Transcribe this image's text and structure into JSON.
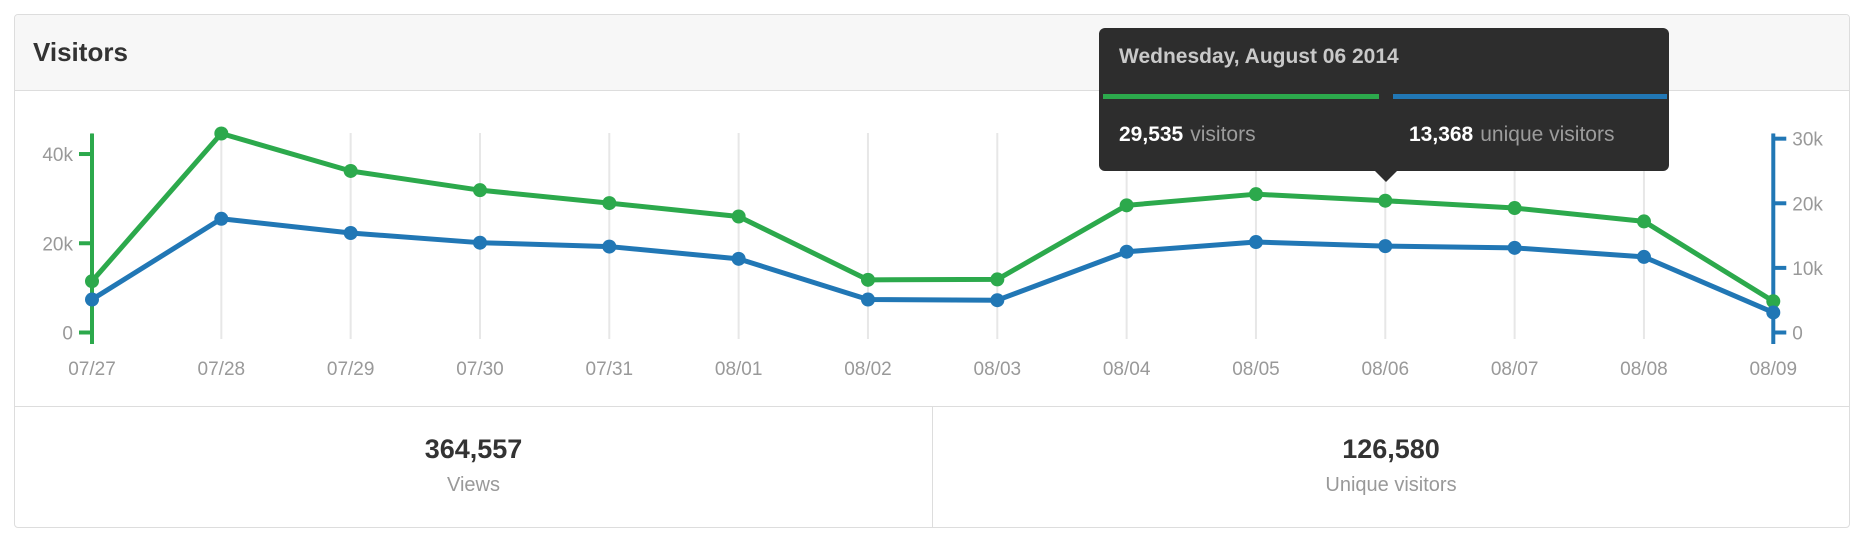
{
  "panel": {
    "title": "Visitors"
  },
  "tooltip": {
    "date": "Wednesday, August 06 2014",
    "visitors_value": "29,535",
    "visitors_label": "visitors",
    "unique_value": "13,368",
    "unique_label": "unique visitors"
  },
  "summary": {
    "views": {
      "value": "364,557",
      "label": "Views"
    },
    "unique": {
      "value": "126,580",
      "label": "Unique visitors"
    }
  },
  "colors": {
    "visitors_green": "#2ca94c",
    "unique_blue": "#2177b5",
    "gridline": "#e7e7e7",
    "axis_label": "#999999",
    "tooltip_bg": "#2d2d2d"
  },
  "chart_data": {
    "type": "line",
    "title": "Visitors",
    "x": [
      "07/27",
      "07/28",
      "07/29",
      "07/30",
      "07/31",
      "08/01",
      "08/02",
      "08/03",
      "08/04",
      "08/05",
      "08/06",
      "08/07",
      "08/08",
      "08/09"
    ],
    "series": [
      {
        "name": "visitors",
        "axis": "left",
        "color": "#2ca94c",
        "values": [
          11500,
          44600,
          36200,
          31900,
          29000,
          26000,
          11800,
          11900,
          28500,
          31000,
          29535,
          27900,
          24900,
          7000
        ]
      },
      {
        "name": "unique visitors",
        "axis": "right",
        "color": "#2177b5",
        "values": [
          5100,
          17600,
          15400,
          13900,
          13300,
          11400,
          5100,
          5000,
          12500,
          14000,
          13368,
          13100,
          11700,
          3100
        ]
      }
    ],
    "left_axis": {
      "ticks": [
        0,
        20000,
        40000
      ],
      "labels": [
        "0",
        "20k",
        "40k"
      ],
      "max": 44600
    },
    "right_axis": {
      "ticks": [
        0,
        10000,
        20000,
        30000
      ],
      "labels": [
        "0",
        "10k",
        "20k",
        "30k"
      ],
      "max": 30800
    },
    "grid": "vertical-per-category",
    "legend": "none",
    "highlighted_x": "08/06"
  }
}
